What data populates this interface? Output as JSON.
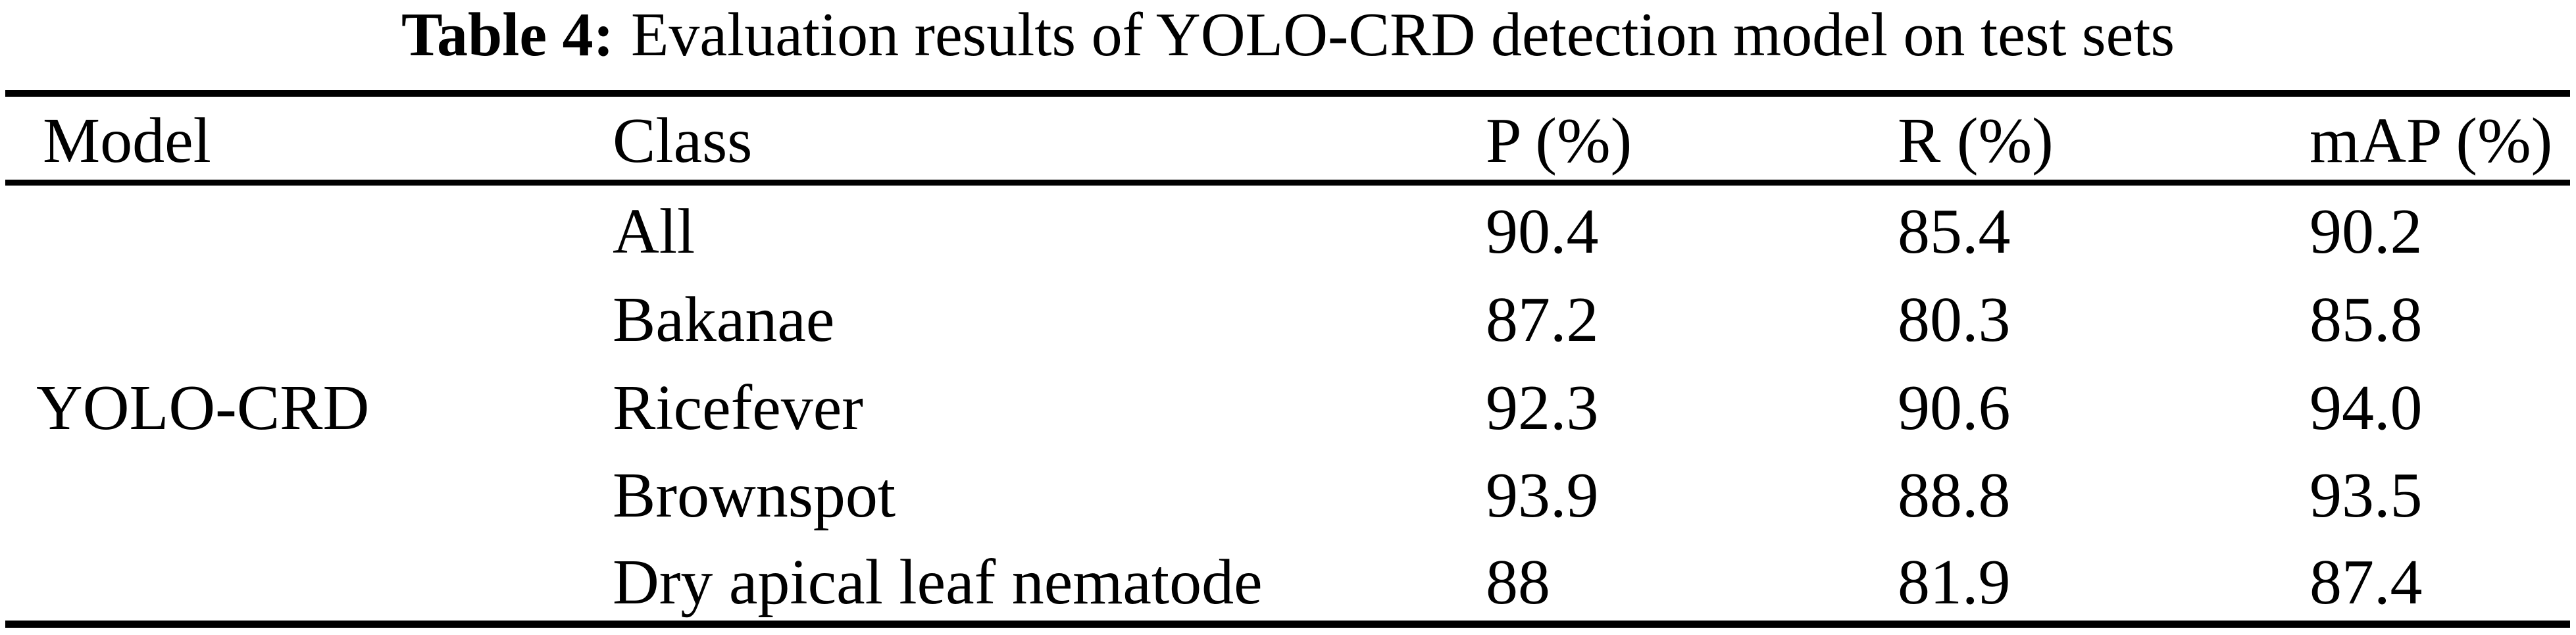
{
  "caption": {
    "label": "Table 4:",
    "text": "Evaluation results of YOLO-CRD detection model on test sets"
  },
  "table": {
    "columns": [
      "Model",
      "Class",
      "P (%)",
      "R (%)",
      "mAP (%)"
    ],
    "model_name": "YOLO-CRD",
    "rows": [
      {
        "class": "All",
        "p": "90.4",
        "r": "85.4",
        "map": "90.2"
      },
      {
        "class": "Bakanae",
        "p": "87.2",
        "r": "80.3",
        "map": "85.8"
      },
      {
        "class": "Ricefever",
        "p": "92.3",
        "r": "90.6",
        "map": "94.0"
      },
      {
        "class": "Brownspot",
        "p": "93.9",
        "r": "88.8",
        "map": "93.5"
      },
      {
        "class": "Dry apical leaf nematode",
        "p": "88",
        "r": "81.9",
        "map": "87.4"
      }
    ]
  },
  "colors": {
    "background": "#ffffff",
    "text": "#000000",
    "rule": "#000000"
  }
}
